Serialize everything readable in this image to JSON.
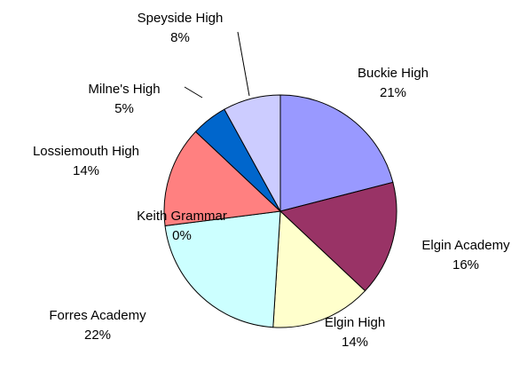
{
  "chart_data": {
    "type": "pie",
    "categories": [
      "Buckie High",
      "Elgin Academy",
      "Elgin High",
      "Forres Academy",
      "Keith Grammar",
      "Lossiemouth High",
      "Milne's High",
      "Speyside High"
    ],
    "values": [
      21,
      16,
      14,
      22,
      0,
      14,
      5,
      8
    ],
    "value_labels": [
      "21%",
      "16%",
      "14%",
      "22%",
      "0%",
      "14%",
      "5%",
      "8%"
    ],
    "colors": [
      "#9999ff",
      "#993366",
      "#ffffcc",
      "#ccffff",
      "#ffffff",
      "#ff8080",
      "#0066cc",
      "#ccccff"
    ]
  }
}
